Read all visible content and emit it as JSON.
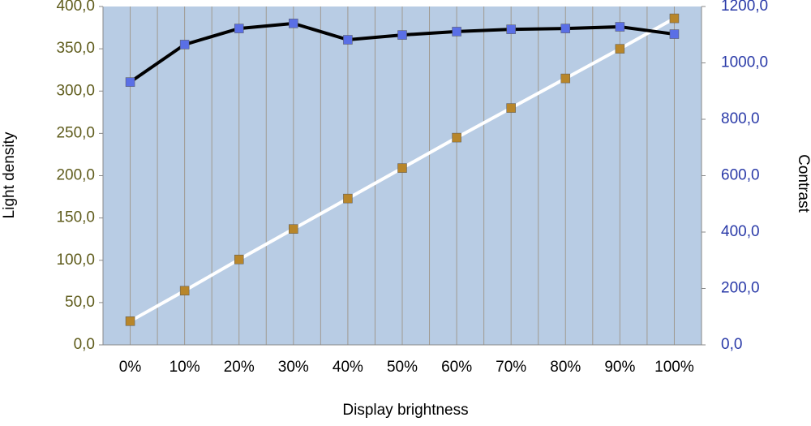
{
  "chart_data": {
    "type": "line",
    "x_label": "Display brightness",
    "y_label": "Light density",
    "y2_label": "Contrast",
    "categories": [
      "0%",
      "10%",
      "20%",
      "30%",
      "40%",
      "50%",
      "60%",
      "70%",
      "80%",
      "90%",
      "100%"
    ],
    "series": [
      {
        "name": "Light density",
        "color": "#b8862a",
        "line_color": "#ffffff",
        "values": [
          28,
          64,
          101,
          137,
          173,
          209,
          245,
          280,
          315,
          350,
          386
        ]
      },
      {
        "name": "Contrast",
        "color": "#5a6fe6",
        "line_color": "#000000",
        "axis": "y2",
        "values": [
          932,
          1065,
          1122,
          1140,
          1082,
          1099,
          1111,
          1119,
          1122,
          1128,
          1102
        ]
      }
    ],
    "ylim": [
      0,
      400
    ],
    "yticks": [
      {
        "value": 0,
        "label": "0,0"
      },
      {
        "value": 50,
        "label": "50,0"
      },
      {
        "value": 100,
        "label": "100,0"
      },
      {
        "value": 150,
        "label": "150,0"
      },
      {
        "value": 200,
        "label": "200,0"
      },
      {
        "value": 250,
        "label": "250,0"
      },
      {
        "value": 300,
        "label": "300,0"
      },
      {
        "value": 350,
        "label": "350,0"
      },
      {
        "value": 400,
        "label": "400,0"
      }
    ],
    "y2lim": [
      0,
      1200
    ],
    "y2ticks": [
      {
        "value": 0,
        "label": "0,0"
      },
      {
        "value": 200,
        "label": "200,0"
      },
      {
        "value": 400,
        "label": "400,0"
      },
      {
        "value": 600,
        "label": "600,0"
      },
      {
        "value": 800,
        "label": "800,0"
      },
      {
        "value": 1000,
        "label": "1000,0"
      },
      {
        "value": 1200,
        "label": "1200,0"
      }
    ],
    "ytick_color": "#5f5c1c",
    "y2tick_color": "#2a3aa8",
    "plot_background": "#b8cce4",
    "grid_color": "#a09a90"
  }
}
